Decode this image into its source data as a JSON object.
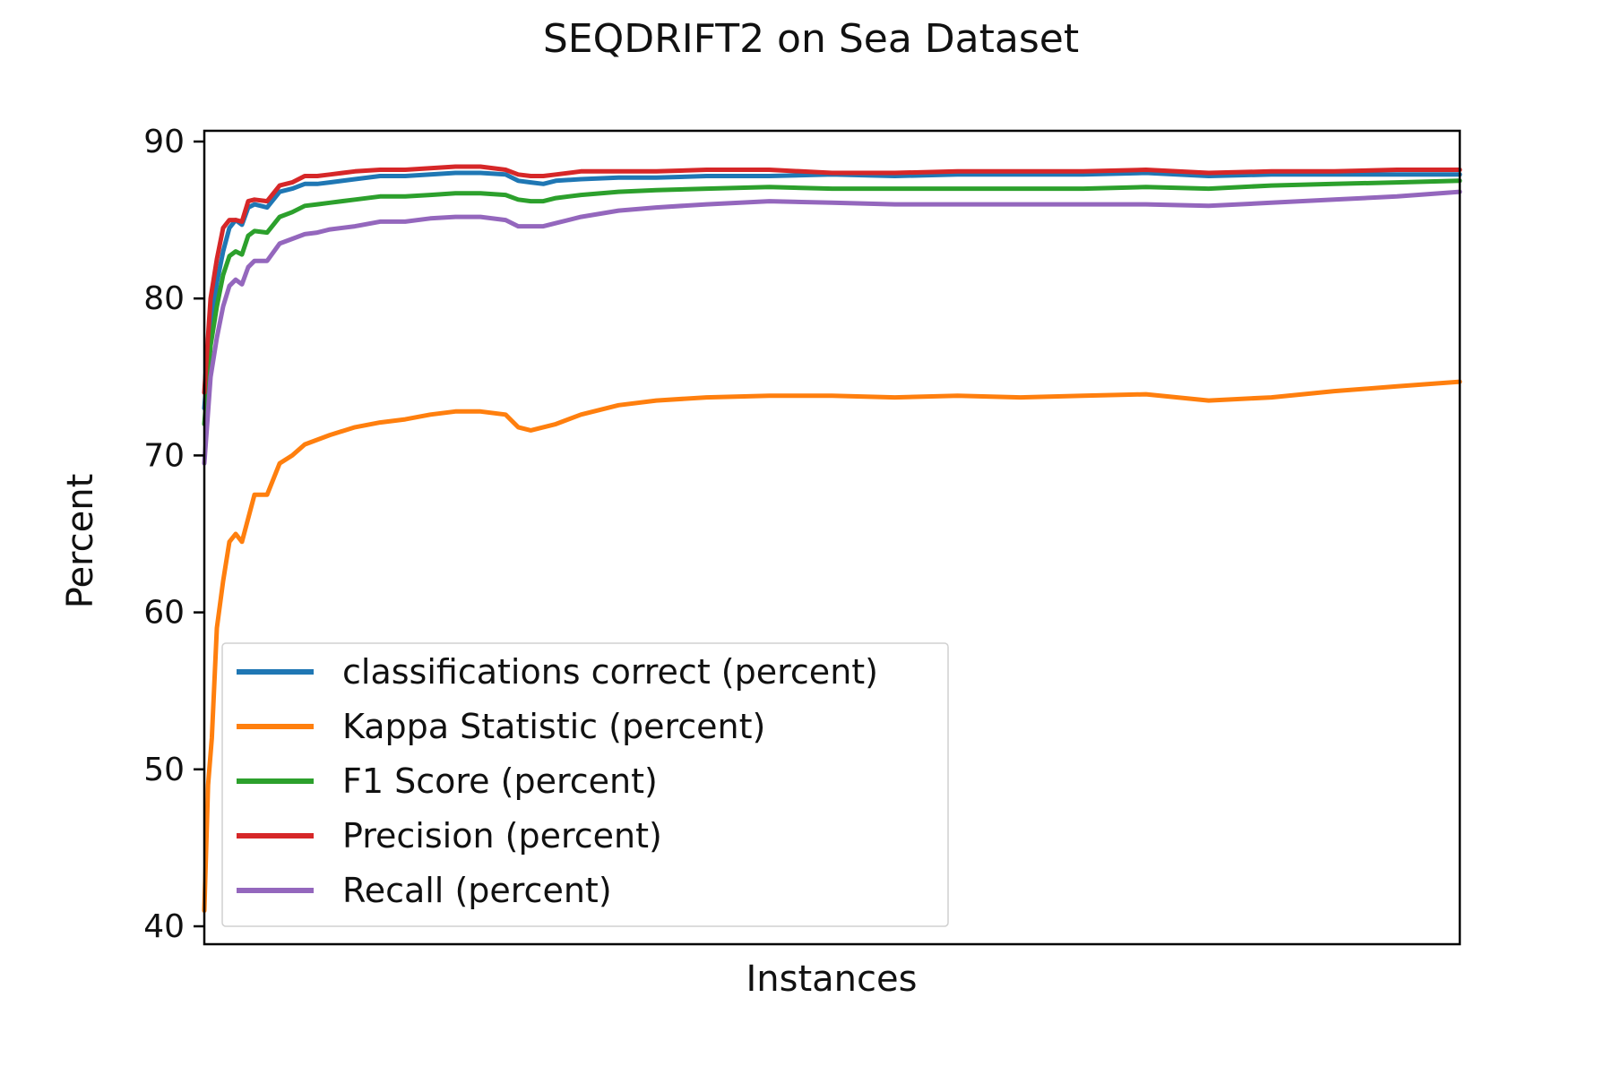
{
  "chart_data": {
    "type": "line",
    "title": "SEQDRIFT2 on Sea Dataset",
    "xlabel": "Instances",
    "ylabel": "Percent",
    "ylim": [
      40,
      90
    ],
    "xlim": [
      0,
      100
    ],
    "yticks": [
      40,
      50,
      60,
      70,
      80,
      90
    ],
    "xticks_shown": false,
    "grid": false,
    "legend_position": "lower-left",
    "series": [
      {
        "name": "classifications correct (percent)",
        "color": "#1f77b4",
        "x": [
          0,
          0.5,
          1,
          1.5,
          2,
          2.5,
          3,
          3.5,
          4,
          5,
          6,
          7,
          8,
          9,
          10,
          12,
          14,
          16,
          18,
          20,
          22,
          24,
          25,
          26,
          27,
          28,
          30,
          33,
          36,
          40,
          45,
          50,
          55,
          60,
          65,
          70,
          75,
          80,
          85,
          90,
          95,
          100
        ],
        "y": [
          73,
          78,
          81,
          83,
          84.5,
          85,
          84.7,
          85.8,
          86,
          85.8,
          86.8,
          87,
          87.3,
          87.3,
          87.4,
          87.6,
          87.8,
          87.8,
          87.9,
          88,
          88,
          87.9,
          87.5,
          87.4,
          87.3,
          87.5,
          87.6,
          87.7,
          87.7,
          87.8,
          87.8,
          87.9,
          87.8,
          87.9,
          87.9,
          87.9,
          88,
          87.8,
          87.9,
          87.9,
          87.9,
          87.9
        ]
      },
      {
        "name": "Kappa Statistic (percent)",
        "color": "#ff7f0e",
        "x": [
          0,
          0.3,
          0.6,
          1,
          1.5,
          2,
          2.5,
          3,
          3.5,
          4,
          5,
          6,
          7,
          8,
          9,
          10,
          12,
          14,
          16,
          18,
          20,
          22,
          24,
          25,
          26,
          27,
          28,
          30,
          33,
          36,
          40,
          45,
          50,
          55,
          60,
          65,
          70,
          75,
          80,
          85,
          90,
          95,
          100
        ],
        "y": [
          41,
          49,
          52,
          59,
          62,
          64.5,
          65,
          64.5,
          66,
          67.5,
          67.5,
          69.5,
          70,
          70.7,
          71,
          71.3,
          71.8,
          72.1,
          72.3,
          72.6,
          72.8,
          72.8,
          72.6,
          71.8,
          71.6,
          71.8,
          72,
          72.6,
          73.2,
          73.5,
          73.7,
          73.8,
          73.8,
          73.7,
          73.8,
          73.7,
          73.8,
          73.9,
          73.5,
          73.7,
          74.1,
          74.4,
          74.7
        ]
      },
      {
        "name": "F1 Score (percent)",
        "color": "#2ca02c",
        "x": [
          0,
          0.5,
          1,
          1.5,
          2,
          2.5,
          3,
          3.5,
          4,
          5,
          6,
          7,
          8,
          9,
          10,
          12,
          14,
          16,
          18,
          20,
          22,
          24,
          25,
          26,
          27,
          28,
          30,
          33,
          36,
          40,
          45,
          50,
          55,
          60,
          65,
          70,
          75,
          80,
          85,
          90,
          95,
          100
        ],
        "y": [
          72,
          77,
          79.5,
          81.5,
          82.7,
          83,
          82.8,
          84,
          84.3,
          84.2,
          85.2,
          85.5,
          85.9,
          86,
          86.1,
          86.3,
          86.5,
          86.5,
          86.6,
          86.7,
          86.7,
          86.6,
          86.3,
          86.2,
          86.2,
          86.4,
          86.6,
          86.8,
          86.9,
          87,
          87.1,
          87,
          87,
          87,
          87,
          87,
          87.1,
          87,
          87.2,
          87.3,
          87.4,
          87.5
        ]
      },
      {
        "name": "Precision (percent)",
        "color": "#d62728",
        "x": [
          0,
          0.5,
          1,
          1.5,
          2,
          2.5,
          3,
          3.5,
          4,
          5,
          6,
          7,
          8,
          9,
          10,
          12,
          14,
          16,
          18,
          20,
          22,
          24,
          25,
          26,
          27,
          28,
          30,
          33,
          36,
          40,
          45,
          50,
          55,
          60,
          65,
          70,
          75,
          80,
          85,
          90,
          95,
          100
        ],
        "y": [
          74,
          80,
          82.5,
          84.5,
          85,
          85,
          84.9,
          86.2,
          86.3,
          86.2,
          87.2,
          87.4,
          87.8,
          87.8,
          87.9,
          88.1,
          88.2,
          88.2,
          88.3,
          88.4,
          88.4,
          88.2,
          87.9,
          87.8,
          87.8,
          87.9,
          88.1,
          88.1,
          88.1,
          88.2,
          88.2,
          88,
          88,
          88.1,
          88.1,
          88.1,
          88.2,
          88,
          88.1,
          88.1,
          88.2,
          88.2
        ]
      },
      {
        "name": "Recall (percent)",
        "color": "#9467bd",
        "x": [
          0,
          0.5,
          1,
          1.5,
          2,
          2.5,
          3,
          3.5,
          4,
          5,
          6,
          7,
          8,
          9,
          10,
          12,
          14,
          16,
          18,
          20,
          22,
          24,
          25,
          26,
          27,
          28,
          30,
          33,
          36,
          40,
          45,
          50,
          55,
          60,
          65,
          70,
          75,
          80,
          85,
          90,
          95,
          100
        ],
        "y": [
          69.5,
          75,
          77.5,
          79.5,
          80.8,
          81.2,
          80.9,
          82,
          82.4,
          82.4,
          83.5,
          83.8,
          84.1,
          84.2,
          84.4,
          84.6,
          84.9,
          84.9,
          85.1,
          85.2,
          85.2,
          85,
          84.6,
          84.6,
          84.6,
          84.8,
          85.2,
          85.6,
          85.8,
          86,
          86.2,
          86.1,
          86,
          86,
          86,
          86,
          86,
          85.9,
          86.1,
          86.3,
          86.5,
          86.8
        ]
      }
    ]
  }
}
